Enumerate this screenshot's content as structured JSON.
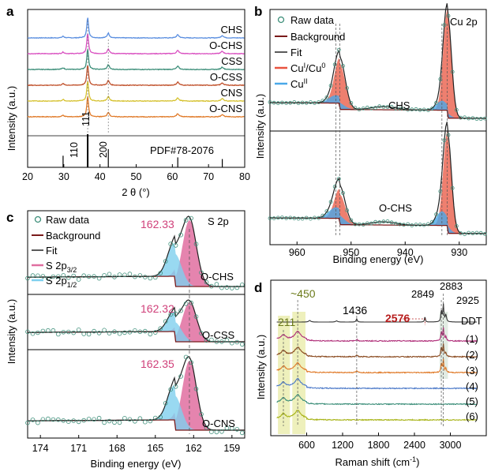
{
  "colors": {
    "CHS": "#5b8fe0",
    "O-CHS": "#d94fc0",
    "CSS": "#3d8f7a",
    "O-CSS": "#c0502a",
    "CNS": "#d6c230",
    "O-CNS": "#e07a28",
    "raw": "#3d8f7a",
    "background": "#7a1a1a",
    "fit": "#222222",
    "cu1": "#e8543f",
    "cu2": "#4aa8e8",
    "s32": "#e06fa0",
    "s12": "#7fd0ee",
    "highlight": "#b71c1c",
    "olive": "#6b7a1a"
  },
  "chart_data": [
    {
      "panel": "a",
      "type": "line",
      "xlabel": "2 θ (°)",
      "ylabel": "Intensity (a.u.)",
      "xlim": [
        20,
        80
      ],
      "xticks": [
        20,
        30,
        40,
        50,
        60,
        70,
        80
      ],
      "series": [
        {
          "name": "CHS",
          "color": "#5b8fe0"
        },
        {
          "name": "O-CHS",
          "color": "#d94fc0"
        },
        {
          "name": "CSS",
          "color": "#3d8f7a"
        },
        {
          "name": "O-CSS",
          "color": "#c0502a"
        },
        {
          "name": "CNS",
          "color": "#d6c230"
        },
        {
          "name": "O-CNS",
          "color": "#e07a28"
        }
      ],
      "peaks_2theta": [
        29.8,
        36.6,
        42.3,
        61.5,
        73.8
      ],
      "reference": {
        "label": "PDF#78-2076",
        "lines": [
          {
            "x": 29.8,
            "h": 0.35,
            "label": "110"
          },
          {
            "x": 36.6,
            "h": 1.0,
            "label": "111"
          },
          {
            "x": 42.3,
            "h": 0.55,
            "label": "200"
          },
          {
            "x": 61.5,
            "h": 0.3,
            "label": ""
          },
          {
            "x": 73.8,
            "h": 0.25,
            "label": ""
          }
        ]
      }
    },
    {
      "panel": "b",
      "type": "line",
      "title": "Cu 2p",
      "xlabel": "Binding energy (eV)",
      "ylabel": "Intensity (a.u.)",
      "xlim": [
        965,
        925
      ],
      "xticks": [
        960,
        950,
        940,
        930
      ],
      "legend": [
        "Raw data",
        "Background",
        "Fit",
        "Cu",
        "Cu"
      ],
      "samples": [
        {
          "name": "CHS",
          "peaks": [
            {
              "center": 952.1,
              "type": "CuI/Cu0"
            },
            {
              "center": 932.2,
              "type": "CuI/Cu0"
            },
            {
              "center": 952.8,
              "type": "CuII"
            },
            {
              "center": 933.2,
              "type": "CuII"
            }
          ]
        },
        {
          "name": "O-CHS",
          "peaks": [
            {
              "center": 952.1,
              "type": "CuI/Cu0"
            },
            {
              "center": 932.2,
              "type": "CuI/Cu0"
            },
            {
              "center": 952.8,
              "type": "CuII"
            },
            {
              "center": 933.2,
              "type": "CuII"
            }
          ]
        }
      ]
    },
    {
      "panel": "c",
      "type": "line",
      "title": "S 2p",
      "xlabel": "Binding energy (eV)",
      "ylabel": "Intensity (a.u.)",
      "xlim": [
        175,
        158
      ],
      "xticks": [
        174,
        171,
        168,
        165,
        162,
        159
      ],
      "legend": [
        "Raw data",
        "Background",
        "Fit",
        "S 2p",
        "S 2p"
      ],
      "samples": [
        {
          "name": "O-CHS",
          "peak": 162.33,
          "peak_label": "162.33"
        },
        {
          "name": "O-CSS",
          "peak": 162.32,
          "peak_label": "162.32"
        },
        {
          "name": "O-CNS",
          "peak": 162.35,
          "peak_label": "162.35"
        }
      ]
    },
    {
      "panel": "d",
      "type": "line",
      "xlabel": "Raman shift (cm",
      "xlabel_sup": "-1",
      "xlabel_end": ")",
      "ylabel": "Intensity (a.u.)",
      "xlim": [
        0,
        3600
      ],
      "xticks": [
        600,
        1200,
        1800,
        2400,
        3000
      ],
      "series_labels": [
        "DDT",
        "(1)",
        "(2)",
        "(3)",
        "(4)",
        "(5)",
        "(6)"
      ],
      "peak_labels": [
        "211",
        "~450",
        "1436",
        "2576",
        "2849",
        "2883",
        "2925"
      ],
      "peaks": [
        211,
        450,
        1436,
        2576,
        2849,
        2883,
        2925
      ]
    }
  ],
  "text": {
    "a_letter": "a",
    "b_letter": "b",
    "c_letter": "c",
    "d_letter": "d",
    "a_ylabel": "Intensity (a.u.)",
    "a_xlabel": "2 θ (°)",
    "a_pdf": "PDF#78-2076",
    "a_110": "110",
    "a_111": "111",
    "a_200": "200",
    "a_names": [
      "CHS",
      "O-CHS",
      "CSS",
      "O-CSS",
      "CNS",
      "O-CNS"
    ],
    "b_title": "Cu 2p",
    "b_chs": "CHS",
    "b_ochs": "O-CHS",
    "b_xlabel": "Binding energy (eV)",
    "b_ylabel": "Intensity (a.u.)",
    "leg_raw": "Raw data",
    "leg_bg": "Background",
    "leg_fit": "Fit",
    "leg_cu1_base": "Cu",
    "leg_cu1_sup": "I",
    "leg_cu1_mid": "/Cu",
    "leg_cu1_sup2": "0",
    "leg_cu2_base": "Cu",
    "leg_cu2_sup": "II",
    "c_title": "S 2p",
    "c_xlabel": "Binding energy (eV)",
    "c_ylabel": "Intensity (a.u.)",
    "leg_s32_base": "S 2p",
    "leg_s32_sub": "3/2",
    "leg_s12_base": "S 2p",
    "leg_s12_sub": "1/2",
    "c_val1": "162.33",
    "c_val2": "162.32",
    "c_val3": "162.35",
    "c_n1": "O-CHS",
    "c_n2": "O-CSS",
    "c_n3": "O-CNS",
    "d_xlabel": "Raman shift (cm",
    "d_xsup": "-1",
    "d_xend": ")",
    "d_ylabel": "Intensity (a.u.)",
    "d_211": "211",
    "d_450": "~450",
    "d_1436": "1436",
    "d_2576": "2576",
    "d_2849": "2849",
    "d_2883": "2883",
    "d_2925": "2925",
    "d_ddt": "DDT",
    "d_1": "(1)",
    "d_2": "(2)",
    "d_3": "(3)",
    "d_4": "(4)",
    "d_5": "(5)",
    "d_6": "(6)"
  }
}
